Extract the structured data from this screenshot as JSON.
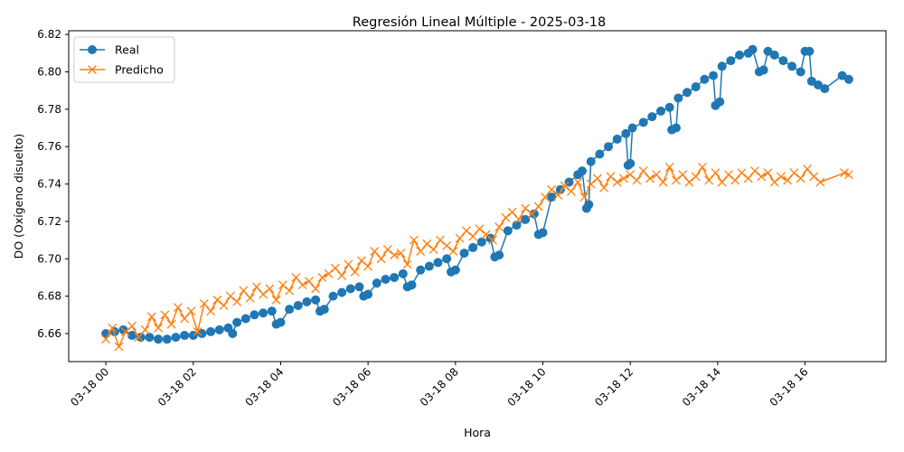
{
  "chart_data": {
    "type": "line",
    "title": "Regresión Lineal Múltiple - 2025-03-18",
    "xlabel": "Hora",
    "ylabel": "DO (Oxígeno disuelto)",
    "x_ticks": [
      "03-18 00",
      "03-18 02",
      "03-18 04",
      "03-18 06",
      "03-18 08",
      "03-18 10",
      "03-18 12",
      "03-18 14",
      "03-18 16"
    ],
    "y_ticks": [
      "6.66",
      "6.68",
      "6.70",
      "6.72",
      "6.74",
      "6.76",
      "6.78",
      "6.80",
      "6.82"
    ],
    "xlim_hours": [
      -0.85,
      17.85
    ],
    "ylim": [
      6.645,
      6.822
    ],
    "grid": false,
    "legend_position": "upper-left",
    "series": [
      {
        "name": "Real",
        "color": "#1f77b4",
        "marker": "circle",
        "points": [
          [
            0.0,
            6.66
          ],
          [
            0.2,
            6.661
          ],
          [
            0.4,
            6.662
          ],
          [
            0.6,
            6.659
          ],
          [
            0.8,
            6.658
          ],
          [
            1.0,
            6.658
          ],
          [
            1.2,
            6.657
          ],
          [
            1.4,
            6.657
          ],
          [
            1.6,
            6.658
          ],
          [
            1.8,
            6.659
          ],
          [
            2.0,
            6.659
          ],
          [
            2.2,
            6.66
          ],
          [
            2.4,
            6.661
          ],
          [
            2.6,
            6.662
          ],
          [
            2.8,
            6.663
          ],
          [
            2.9,
            6.66
          ],
          [
            3.0,
            6.666
          ],
          [
            3.2,
            6.668
          ],
          [
            3.4,
            6.67
          ],
          [
            3.6,
            6.671
          ],
          [
            3.8,
            6.672
          ],
          [
            3.9,
            6.665
          ],
          [
            4.0,
            6.666
          ],
          [
            4.2,
            6.673
          ],
          [
            4.4,
            6.675
          ],
          [
            4.6,
            6.677
          ],
          [
            4.8,
            6.678
          ],
          [
            4.9,
            6.672
          ],
          [
            5.0,
            6.673
          ],
          [
            5.2,
            6.68
          ],
          [
            5.4,
            6.682
          ],
          [
            5.6,
            6.684
          ],
          [
            5.8,
            6.685
          ],
          [
            5.9,
            6.68
          ],
          [
            6.0,
            6.681
          ],
          [
            6.2,
            6.687
          ],
          [
            6.4,
            6.689
          ],
          [
            6.6,
            6.69
          ],
          [
            6.8,
            6.692
          ],
          [
            6.9,
            6.685
          ],
          [
            7.0,
            6.686
          ],
          [
            7.2,
            6.694
          ],
          [
            7.4,
            6.696
          ],
          [
            7.6,
            6.698
          ],
          [
            7.8,
            6.7
          ],
          [
            7.9,
            6.693
          ],
          [
            8.0,
            6.694
          ],
          [
            8.2,
            6.703
          ],
          [
            8.4,
            6.706
          ],
          [
            8.6,
            6.709
          ],
          [
            8.8,
            6.711
          ],
          [
            8.9,
            6.701
          ],
          [
            9.0,
            6.702
          ],
          [
            9.2,
            6.715
          ],
          [
            9.4,
            6.718
          ],
          [
            9.6,
            6.721
          ],
          [
            9.8,
            6.724
          ],
          [
            9.9,
            6.713
          ],
          [
            10.0,
            6.714
          ],
          [
            10.2,
            6.733
          ],
          [
            10.4,
            6.737
          ],
          [
            10.6,
            6.741
          ],
          [
            10.8,
            6.745
          ],
          [
            10.9,
            6.747
          ],
          [
            11.0,
            6.727
          ],
          [
            11.05,
            6.729
          ],
          [
            11.1,
            6.752
          ],
          [
            11.3,
            6.756
          ],
          [
            11.5,
            6.76
          ],
          [
            11.7,
            6.764
          ],
          [
            11.9,
            6.767
          ],
          [
            11.95,
            6.75
          ],
          [
            12.0,
            6.751
          ],
          [
            12.05,
            6.77
          ],
          [
            12.3,
            6.773
          ],
          [
            12.5,
            6.776
          ],
          [
            12.7,
            6.779
          ],
          [
            12.9,
            6.781
          ],
          [
            12.95,
            6.769
          ],
          [
            13.05,
            6.77
          ],
          [
            13.1,
            6.786
          ],
          [
            13.3,
            6.789
          ],
          [
            13.5,
            6.792
          ],
          [
            13.7,
            6.796
          ],
          [
            13.9,
            6.798
          ],
          [
            13.95,
            6.782
          ],
          [
            14.05,
            6.784
          ],
          [
            14.1,
            6.803
          ],
          [
            14.3,
            6.806
          ],
          [
            14.5,
            6.809
          ],
          [
            14.7,
            6.81
          ],
          [
            14.8,
            6.812
          ],
          [
            14.95,
            6.8
          ],
          [
            15.05,
            6.801
          ],
          [
            15.15,
            6.811
          ],
          [
            15.3,
            6.809
          ],
          [
            15.5,
            6.806
          ],
          [
            15.7,
            6.803
          ],
          [
            15.9,
            6.8
          ],
          [
            16.0,
            6.811
          ],
          [
            16.1,
            6.811
          ],
          [
            16.15,
            6.795
          ],
          [
            16.3,
            6.793
          ],
          [
            16.45,
            6.791
          ],
          [
            16.85,
            6.798
          ],
          [
            17.0,
            6.796
          ]
        ]
      },
      {
        "name": "Predicho",
        "color": "#ff7f0e",
        "marker": "x",
        "points": [
          [
            0.0,
            6.657
          ],
          [
            0.15,
            6.663
          ],
          [
            0.3,
            6.653
          ],
          [
            0.45,
            6.661
          ],
          [
            0.6,
            6.664
          ],
          [
            0.75,
            6.658
          ],
          [
            0.9,
            6.662
          ],
          [
            1.05,
            6.669
          ],
          [
            1.2,
            6.663
          ],
          [
            1.35,
            6.67
          ],
          [
            1.5,
            6.665
          ],
          [
            1.65,
            6.674
          ],
          [
            1.8,
            6.668
          ],
          [
            1.95,
            6.672
          ],
          [
            2.1,
            6.661
          ],
          [
            2.25,
            6.676
          ],
          [
            2.4,
            6.672
          ],
          [
            2.55,
            6.678
          ],
          [
            2.7,
            6.675
          ],
          [
            2.85,
            6.68
          ],
          [
            3.0,
            6.677
          ],
          [
            3.15,
            6.683
          ],
          [
            3.3,
            6.679
          ],
          [
            3.45,
            6.685
          ],
          [
            3.6,
            6.681
          ],
          [
            3.75,
            6.684
          ],
          [
            3.9,
            6.678
          ],
          [
            4.05,
            6.686
          ],
          [
            4.2,
            6.683
          ],
          [
            4.35,
            6.69
          ],
          [
            4.5,
            6.686
          ],
          [
            4.65,
            6.688
          ],
          [
            4.8,
            6.684
          ],
          [
            4.95,
            6.69
          ],
          [
            5.1,
            6.692
          ],
          [
            5.25,
            6.695
          ],
          [
            5.4,
            6.691
          ],
          [
            5.55,
            6.697
          ],
          [
            5.7,
            6.693
          ],
          [
            5.85,
            6.699
          ],
          [
            6.0,
            6.696
          ],
          [
            6.15,
            6.704
          ],
          [
            6.3,
            6.7
          ],
          [
            6.45,
            6.705
          ],
          [
            6.6,
            6.702
          ],
          [
            6.75,
            6.703
          ],
          [
            6.9,
            6.697
          ],
          [
            7.05,
            6.71
          ],
          [
            7.2,
            6.704
          ],
          [
            7.35,
            6.708
          ],
          [
            7.5,
            6.705
          ],
          [
            7.65,
            6.71
          ],
          [
            7.8,
            6.707
          ],
          [
            7.95,
            6.704
          ],
          [
            8.1,
            6.711
          ],
          [
            8.25,
            6.715
          ],
          [
            8.4,
            6.712
          ],
          [
            8.55,
            6.716
          ],
          [
            8.7,
            6.713
          ],
          [
            8.85,
            6.71
          ],
          [
            9.0,
            6.717
          ],
          [
            9.15,
            6.722
          ],
          [
            9.3,
            6.725
          ],
          [
            9.45,
            6.721
          ],
          [
            9.6,
            6.727
          ],
          [
            9.75,
            6.724
          ],
          [
            9.9,
            6.728
          ],
          [
            10.05,
            6.733
          ],
          [
            10.2,
            6.737
          ],
          [
            10.35,
            6.734
          ],
          [
            10.5,
            6.739
          ],
          [
            10.65,
            6.736
          ],
          [
            10.8,
            6.741
          ],
          [
            10.95,
            6.733
          ],
          [
            11.1,
            6.74
          ],
          [
            11.25,
            6.743
          ],
          [
            11.4,
            6.738
          ],
          [
            11.55,
            6.744
          ],
          [
            11.7,
            6.741
          ],
          [
            11.85,
            6.743
          ],
          [
            12.0,
            6.745
          ],
          [
            12.15,
            6.742
          ],
          [
            12.3,
            6.747
          ],
          [
            12.45,
            6.743
          ],
          [
            12.6,
            6.745
          ],
          [
            12.75,
            6.741
          ],
          [
            12.9,
            6.749
          ],
          [
            13.05,
            6.742
          ],
          [
            13.2,
            6.745
          ],
          [
            13.35,
            6.741
          ],
          [
            13.5,
            6.744
          ],
          [
            13.65,
            6.749
          ],
          [
            13.8,
            6.742
          ],
          [
            13.95,
            6.746
          ],
          [
            14.1,
            6.741
          ],
          [
            14.25,
            6.745
          ],
          [
            14.4,
            6.742
          ],
          [
            14.55,
            6.746
          ],
          [
            14.7,
            6.743
          ],
          [
            14.85,
            6.747
          ],
          [
            15.0,
            6.744
          ],
          [
            15.15,
            6.746
          ],
          [
            15.3,
            6.741
          ],
          [
            15.45,
            6.744
          ],
          [
            15.6,
            6.742
          ],
          [
            15.75,
            6.746
          ],
          [
            15.9,
            6.743
          ],
          [
            16.05,
            6.748
          ],
          [
            16.2,
            6.744
          ],
          [
            16.35,
            6.741
          ],
          [
            16.9,
            6.746
          ],
          [
            17.0,
            6.745
          ]
        ]
      }
    ]
  }
}
